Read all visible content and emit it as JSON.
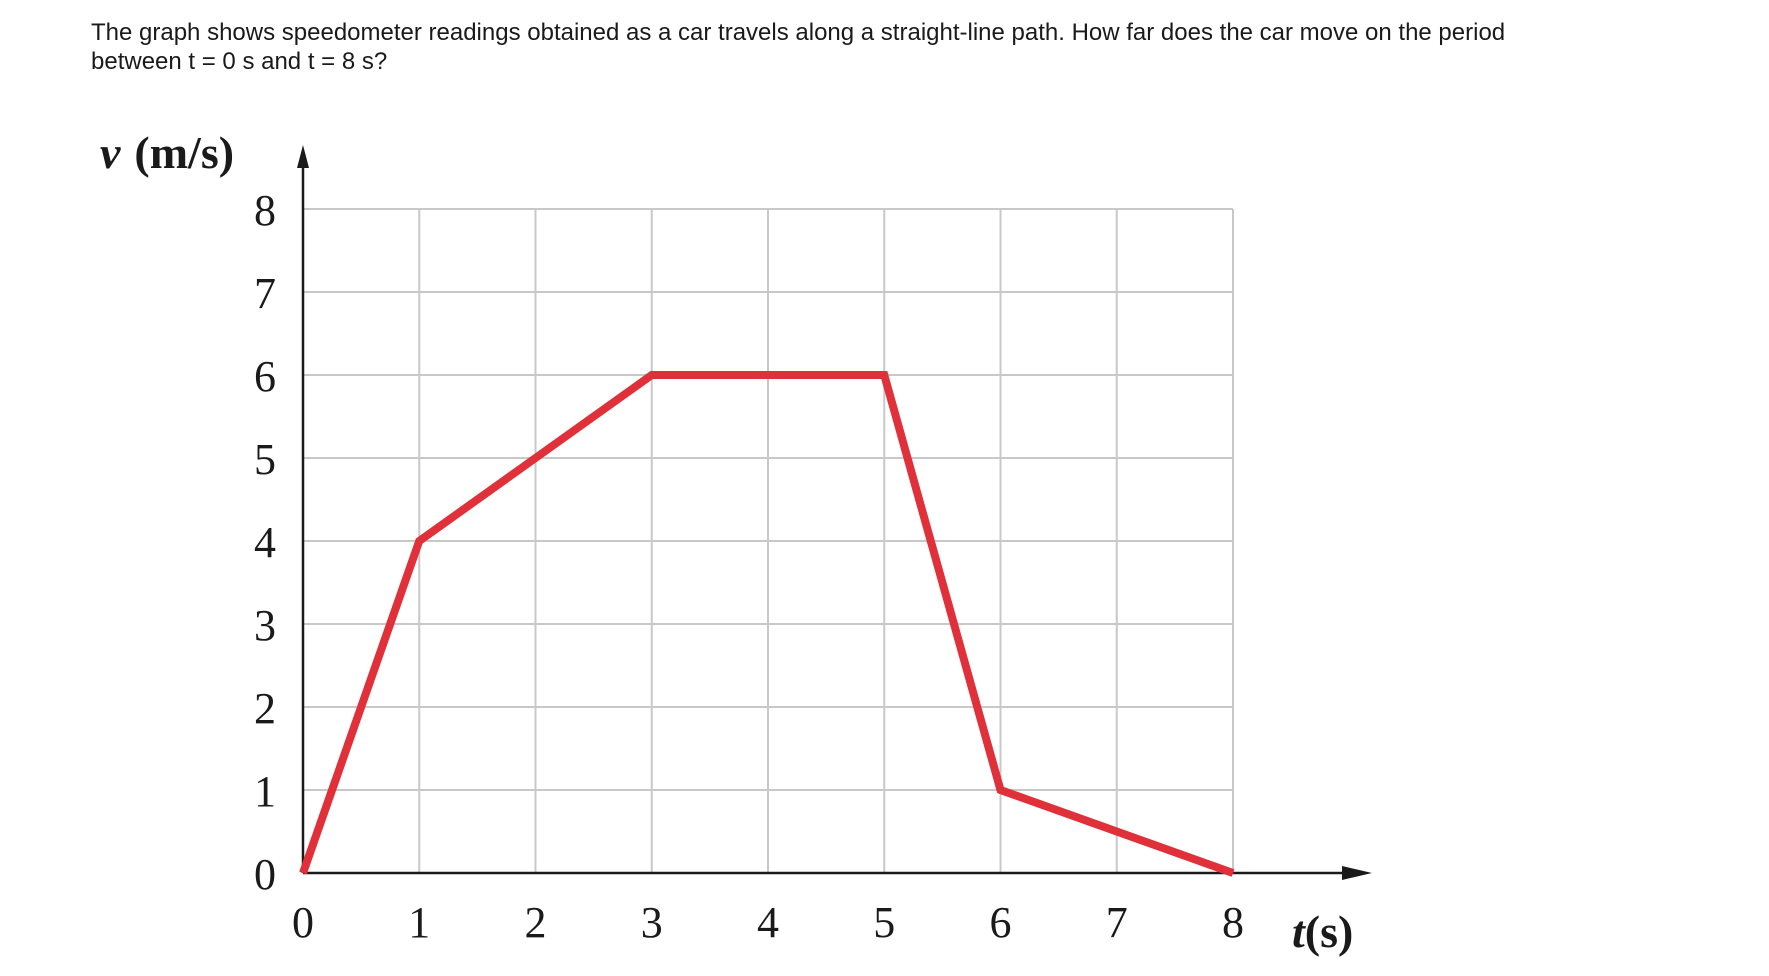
{
  "question": {
    "text": "The graph shows speedometer readings obtained as a car travels along a straight-line path. How far does the car move on the period between t = 0 s and t = 8 s?"
  },
  "chart_data": {
    "type": "line",
    "x": [
      0,
      1,
      3,
      5,
      6,
      8
    ],
    "series": [
      {
        "values": [
          0,
          4,
          6,
          6,
          1,
          0
        ],
        "color": "#e0303a"
      }
    ],
    "xlabel_var": "t",
    "xlabel_unit": "(s)",
    "ylabel_var": "v",
    "ylabel_unit": "(m/s)",
    "xlim": [
      0,
      8
    ],
    "ylim": [
      0,
      8
    ],
    "xticks": [
      "0",
      "1",
      "2",
      "3",
      "4",
      "5",
      "6",
      "7",
      "8"
    ],
    "yticks": [
      "0",
      "1",
      "2",
      "3",
      "4",
      "5",
      "6",
      "7",
      "8"
    ],
    "grid": true,
    "grid_color": "#c8c8c8",
    "axis_color": "#1a1a1a"
  }
}
